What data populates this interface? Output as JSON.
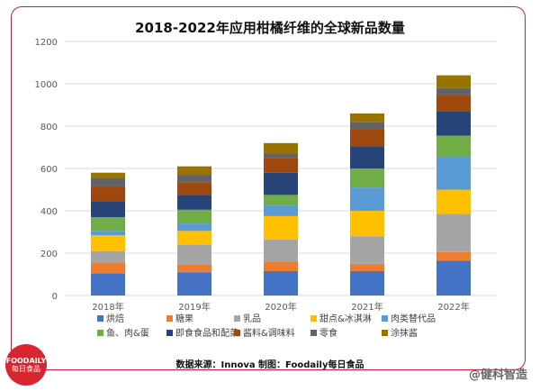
{
  "title": "2018-2022年应用柑橘纤维的全球新品数量",
  "source": "数据来源：Innova   制图：Foodaily每日食品",
  "logo": {
    "line1": "FOODAILY",
    "line2": "每日食品"
  },
  "credit": "@健科智造",
  "colors": {
    "frame": "#c9202f",
    "grid": "#d9d9d9",
    "axis_text": "#595959"
  },
  "chart_data": {
    "type": "bar",
    "stacked": true,
    "categories": [
      "2018年",
      "2019年",
      "2020年",
      "2021年",
      "2022年"
    ],
    "ylim": [
      0,
      1200
    ],
    "yticks": [
      0,
      200,
      400,
      600,
      800,
      1000,
      1200
    ],
    "grid": true,
    "legend_position": "bottom",
    "title": "2018-2022年应用柑橘纤维的全球新品数量",
    "xlabel": "",
    "ylabel": "",
    "series": [
      {
        "name": "烘焙",
        "color": "#4472c4",
        "values": [
          105,
          110,
          115,
          115,
          165
        ]
      },
      {
        "name": "糖果",
        "color": "#ed7d31",
        "values": [
          50,
          35,
          45,
          35,
          40
        ]
      },
      {
        "name": "乳品",
        "color": "#a5a5a5",
        "values": [
          55,
          95,
          105,
          130,
          180
        ]
      },
      {
        "name": "甜点&冰淇淋",
        "color": "#ffc000",
        "values": [
          75,
          65,
          110,
          120,
          115
        ]
      },
      {
        "name": "肉类替代品",
        "color": "#5b9bd5",
        "values": [
          20,
          35,
          50,
          110,
          155
        ]
      },
      {
        "name": "鱼、肉&蛋",
        "color": "#70ad47",
        "values": [
          65,
          65,
          50,
          90,
          100
        ]
      },
      {
        "name": "即食食品和配菜",
        "color": "#264478",
        "values": [
          75,
          70,
          105,
          105,
          115
        ]
      },
      {
        "name": "酱料&调味料",
        "color": "#9e480e",
        "values": [
          70,
          60,
          70,
          80,
          75
        ]
      },
      {
        "name": "零食",
        "color": "#636363",
        "values": [
          40,
          35,
          20,
          35,
          35
        ]
      },
      {
        "name": "涂抹酱",
        "color": "#997300",
        "values": [
          25,
          40,
          50,
          40,
          60
        ]
      }
    ]
  }
}
